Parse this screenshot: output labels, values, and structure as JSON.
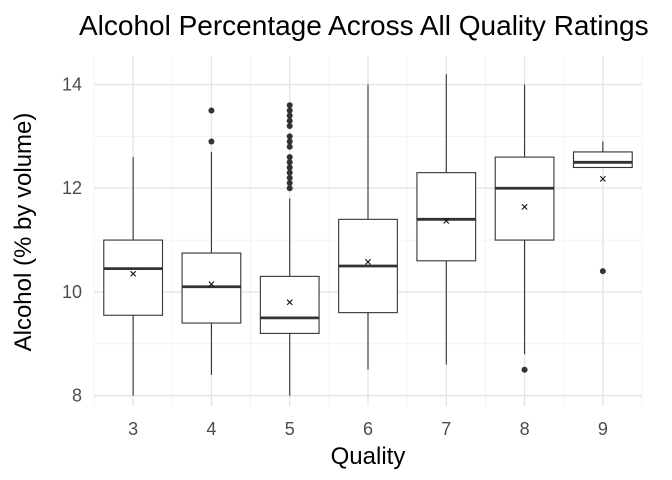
{
  "chart_data": {
    "type": "boxplot",
    "title": "Alcohol Percentage Across All Quality Ratings",
    "xlabel": "Quality",
    "ylabel": "Alcohol (% by volume)",
    "ylim": [
      7.8,
      14.55
    ],
    "y_ticks": [
      8,
      10,
      12,
      14
    ],
    "categories": [
      "3",
      "4",
      "5",
      "6",
      "7",
      "8",
      "9"
    ],
    "boxes": [
      {
        "q1": 9.55,
        "median": 10.45,
        "q3": 11.0,
        "whisker_low": 8.0,
        "whisker_high": 12.6,
        "mean": 10.35,
        "outliers": []
      },
      {
        "q1": 9.4,
        "median": 10.1,
        "q3": 10.75,
        "whisker_low": 8.4,
        "whisker_high": 12.7,
        "mean": 10.15,
        "outliers": [
          12.9,
          13.5
        ]
      },
      {
        "q1": 9.2,
        "median": 9.5,
        "q3": 10.3,
        "whisker_low": 8.0,
        "whisker_high": 11.8,
        "mean": 9.8,
        "outliers": [
          12.0,
          12.1,
          12.2,
          12.3,
          12.4,
          12.5,
          12.6,
          12.8,
          12.9,
          13.0,
          13.2,
          13.3,
          13.4,
          13.5,
          13.6
        ]
      },
      {
        "q1": 9.6,
        "median": 10.5,
        "q3": 11.4,
        "whisker_low": 8.5,
        "whisker_high": 14.0,
        "mean": 10.58,
        "outliers": []
      },
      {
        "q1": 10.6,
        "median": 11.4,
        "q3": 12.3,
        "whisker_low": 8.6,
        "whisker_high": 14.2,
        "mean": 11.37,
        "outliers": []
      },
      {
        "q1": 11.0,
        "median": 12.0,
        "q3": 12.6,
        "whisker_low": 8.8,
        "whisker_high": 14.0,
        "mean": 11.64,
        "outliers": [
          8.5
        ]
      },
      {
        "q1": 12.4,
        "median": 12.5,
        "q3": 12.7,
        "whisker_low": 12.4,
        "whisker_high": 12.9,
        "mean": 12.18,
        "outliers": [
          10.4
        ]
      }
    ]
  }
}
